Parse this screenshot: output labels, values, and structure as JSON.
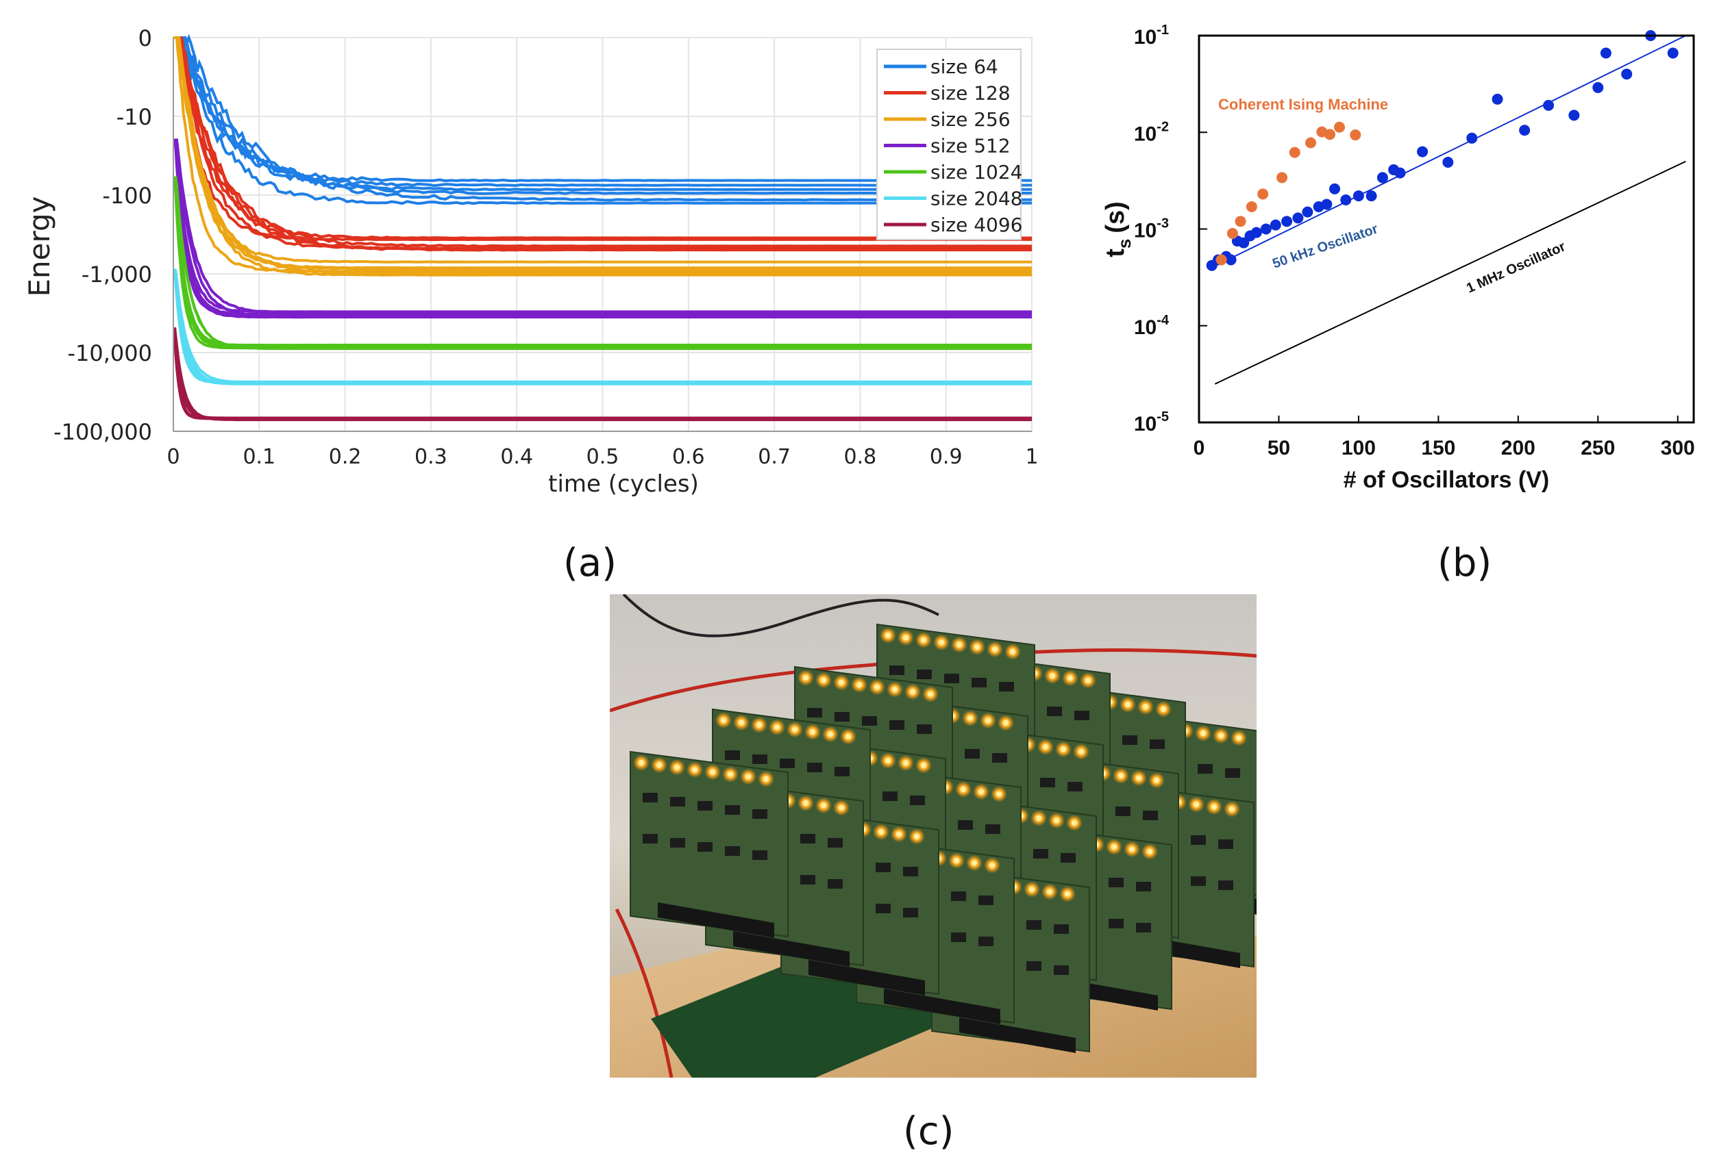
{
  "chart_data": [
    {
      "type": "line",
      "panel": "(a)",
      "xlabel": "time (cycles)",
      "ylabel": "Energy",
      "yscale": "log-negative",
      "xlim": [
        0,
        1
      ],
      "x_ticks": [
        "0",
        "0.1",
        "0.2",
        "0.3",
        "0.4",
        "0.5",
        "0.6",
        "0.7",
        "0.8",
        "0.9",
        "1"
      ],
      "y_ticks": [
        "0",
        "-10",
        "-100",
        "-1,000",
        "-10,000",
        "-100,000"
      ],
      "grid": true,
      "legend_position": "top-right",
      "series": [
        {
          "name": "size 64",
          "color": "#1f7fe6",
          "start_energy": -1,
          "t0": 0.045,
          "final_energy": -95,
          "spread": 0.55
        },
        {
          "name": "size 128",
          "color": "#e0321e",
          "start_energy": -1,
          "t0": 0.03,
          "final_energy": -420,
          "spread": 0.4
        },
        {
          "name": "size 256",
          "color": "#eba515",
          "start_energy": -1,
          "t0": 0.02,
          "final_energy": -850,
          "spread": 0.3
        },
        {
          "name": "size 512",
          "color": "#7a1fc9",
          "start_energy": -20,
          "t0": 0.012,
          "final_energy": -3300,
          "spread": 0.14
        },
        {
          "name": "size 1024",
          "color": "#4fc41a",
          "start_energy": -60,
          "t0": 0.01,
          "final_energy": -8500,
          "spread": 0.1
        },
        {
          "name": "size 2048",
          "color": "#56dcf2",
          "start_energy": -900,
          "t0": 0.008,
          "final_energy": -24000,
          "spread": 0.06
        },
        {
          "name": "size 4096",
          "color": "#a01846",
          "start_energy": -5000,
          "t0": 0.006,
          "final_energy": -70000,
          "spread": 0.05
        }
      ]
    },
    {
      "type": "scatter",
      "panel": "(b)",
      "xlabel": "# of Oscillators (V)",
      "ylabel": "t",
      "ylabel_subscript": "s",
      "ylabel_unit": "(s)",
      "yscale": "log",
      "xlim": [
        0,
        310
      ],
      "ylim": [
        1e-05,
        0.1
      ],
      "x_ticks": [
        "0",
        "50",
        "100",
        "150",
        "200",
        "250",
        "300"
      ],
      "y_ticks": [
        {
          "base": "10",
          "exp": "-5"
        },
        {
          "base": "10",
          "exp": "-4"
        },
        {
          "base": "10",
          "exp": "-3"
        },
        {
          "base": "10",
          "exp": "-2"
        },
        {
          "base": "10",
          "exp": "-1"
        }
      ],
      "annotations": [
        {
          "text": "Coherent Ising Machine",
          "color": "#e8733a"
        },
        {
          "text": "50 kHz Oscillator",
          "color": "#2a5a9a"
        },
        {
          "text": "1 MHz Oscillator",
          "color": "#111111"
        }
      ],
      "series": [
        {
          "name": "50 kHz Oscillator",
          "color": "#0b2ed6",
          "x": [
            8,
            12,
            17,
            20,
            24,
            28,
            32,
            36,
            42,
            48,
            55,
            62,
            68,
            75,
            80,
            85,
            92,
            100,
            108,
            115,
            122,
            126,
            140,
            156,
            171,
            187,
            204,
            219,
            235,
            250,
            255,
            268,
            283,
            297
          ],
          "y": [
            0.00042,
            0.00048,
            0.00052,
            0.00048,
            0.00075,
            0.00072,
            0.00085,
            0.00092,
            0.001,
            0.0011,
            0.0012,
            0.0013,
            0.0015,
            0.0017,
            0.0018,
            0.0026,
            0.002,
            0.0022,
            0.0022,
            0.0034,
            0.0041,
            0.0038,
            0.0063,
            0.0049,
            0.0087,
            0.022,
            0.0105,
            0.019,
            0.015,
            0.029,
            0.066,
            0.04,
            0.1,
            0.066
          ]
        },
        {
          "name": "Coherent Ising Machine",
          "color": "#e8733a",
          "x": [
            14,
            21,
            26,
            33,
            40,
            52,
            60,
            70,
            77,
            82,
            88,
            98
          ],
          "y": [
            0.00048,
            0.0009,
            0.0012,
            0.0017,
            0.0023,
            0.0034,
            0.0062,
            0.0078,
            0.0101,
            0.0095,
            0.0113,
            0.0094
          ]
        }
      ],
      "fit_lines": [
        {
          "name": "50 kHz fit",
          "color": "#0b2ed6",
          "x": [
            8,
            305
          ],
          "y": [
            0.0004,
            0.1
          ]
        },
        {
          "name": "1 MHz Oscillator",
          "color": "#000000",
          "x": [
            10,
            305
          ],
          "y": [
            2.5e-05,
            0.005
          ]
        }
      ]
    }
  ],
  "captions": {
    "a": "(a)",
    "b": "(b)",
    "c": "(c)"
  },
  "photo": {
    "alt": "oscillator circuit boards"
  }
}
